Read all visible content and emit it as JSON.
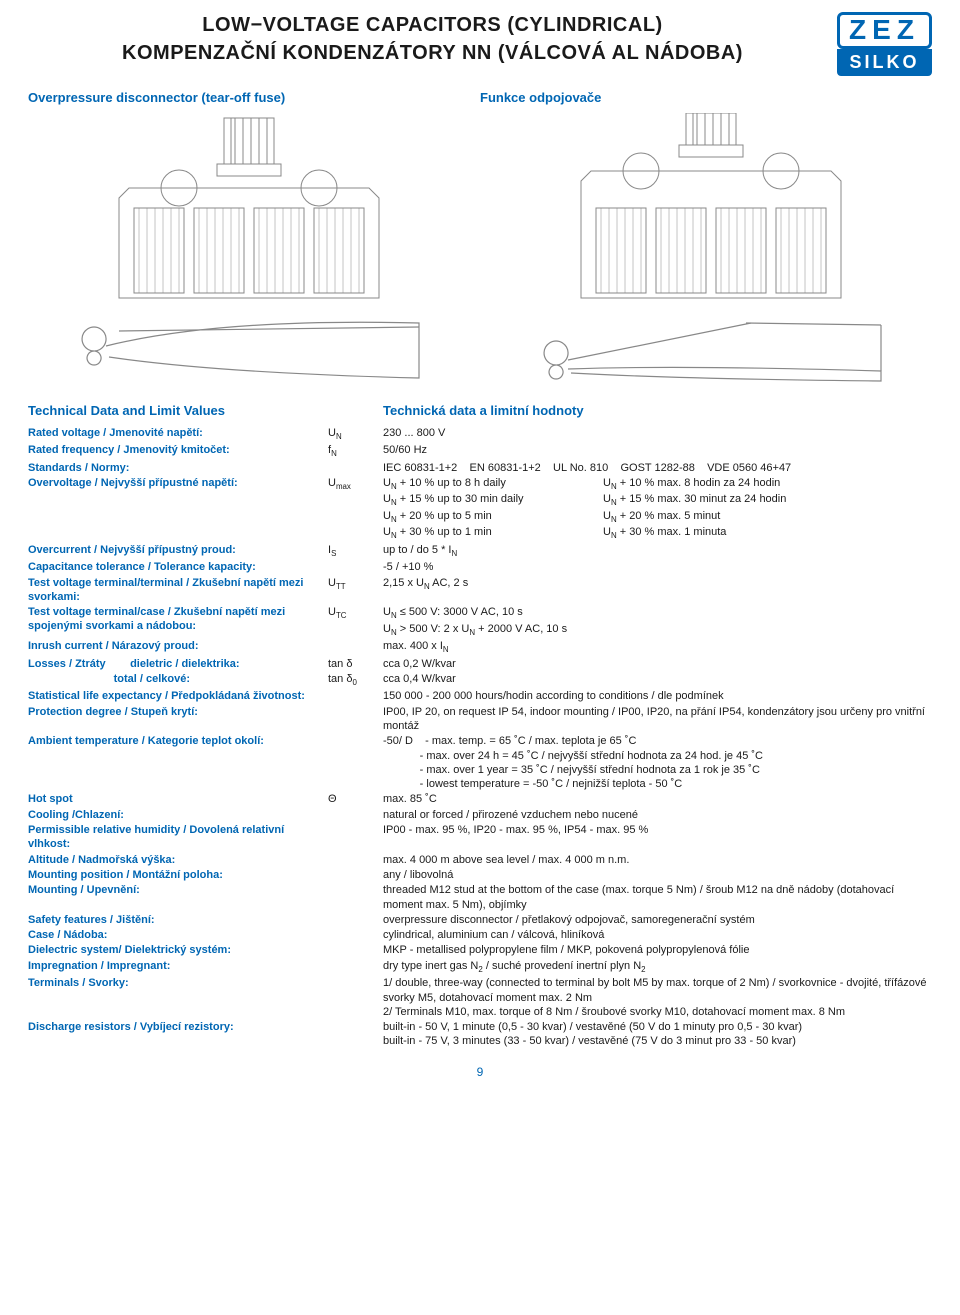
{
  "header": {
    "title1": "LOW−VOLTAGE CAPACITORS (CYLINDRICAL)",
    "title2": "KOMPENZAČNÍ KONDENZÁTORY NN (VÁLCOVÁ AL NÁDOBA)",
    "logo_top": "ZEZ",
    "logo_bottom": "SILKO"
  },
  "subheads": {
    "left": "Overpressure disconnector (tear-off fuse)",
    "right": "Funkce odpojovače"
  },
  "section_heads": {
    "left": "Technical Data and Limit Values",
    "right": "Technická data a limitní hodnoty"
  },
  "specs": [
    {
      "label": "Rated voltage / Jmenovité napětí:",
      "sym": "U<span class='sub'>N</span>",
      "val": "230 ... 800 V"
    },
    {
      "label": "Rated frequency / Jmenovitý kmitočet:",
      "sym": "f<span class='sub'>N</span>",
      "val": "50/60 Hz"
    },
    {
      "label": "Standards / Normy:",
      "sym": "",
      "val": "IEC 60831-1+2&nbsp;&nbsp;&nbsp;&nbsp;EN 60831-1+2&nbsp;&nbsp;&nbsp;&nbsp;UL No. 810&nbsp;&nbsp;&nbsp;&nbsp;GOST 1282-88&nbsp;&nbsp;&nbsp;&nbsp;VDE 0560 46+47"
    },
    {
      "label": "Overvoltage / Nejvyšší přípustné napětí:",
      "sym": "U<span class='sub'>max</span>",
      "val": "<div class='cols2'><span>U<span class='sub'>N</span> + 10 % up to 8 h daily</span><span>U<span class='sub'>N</span> + 10 % max. 8 hodin za 24 hodin</span></div><div class='cols2'><span>U<span class='sub'>N</span> + 15 % up to 30 min daily</span><span>U<span class='sub'>N</span> + 15 % max. 30 minut za 24 hodin</span></div><div class='cols2'><span>U<span class='sub'>N</span> + 20 % up to 5 min</span><span>U<span class='sub'>N</span> + 20 % max. 5 minut</span></div><div class='cols2'><span>U<span class='sub'>N</span> + 30 % up to 1 min</span><span>U<span class='sub'>N</span> + 30 % max. 1 minuta</span></div>"
    },
    {
      "label": "Overcurrent / Nejvyšší přípustný proud:",
      "sym": "I<span class='sub'>S</span>",
      "val": "up to / do 5 * I<span class='sub'>N</span>"
    },
    {
      "label": "Capacitance tolerance / Tolerance kapacity:",
      "sym": "",
      "val": "-5 / +10 %"
    },
    {
      "label": "Test voltage terminal/terminal / Zkušební napětí mezi svorkami:",
      "sym": "U<span class='sub'>TT</span>",
      "val": "2,15 x U<span class='sub'>N</span> AC, 2 s"
    },
    {
      "label": "Test voltage terminal/case / Zkušební napětí mezi spojenými svorkami a nádobou:",
      "sym": "U<span class='sub'>TC</span>",
      "val": "U<span class='sub'>N</span> ≤ 500 V: 3000 V AC, 10 s<br>U<span class='sub'>N</span> > 500 V: 2 x U<span class='sub'>N</span> + 2000 V AC, 10 s"
    },
    {
      "label": "Inrush current / Nárazový proud:",
      "sym": "",
      "val": "max. 400 x I<span class='sub'>N</span>"
    },
    {
      "label": "Losses / Ztráty&nbsp;&nbsp;&nbsp;&nbsp;&nbsp;&nbsp;&nbsp;&nbsp;dieletric / dielektrika:",
      "sym": "tan δ",
      "val": "cca 0,2 W/kvar"
    },
    {
      "label": "&nbsp;&nbsp;&nbsp;&nbsp;&nbsp;&nbsp;&nbsp;&nbsp;&nbsp;&nbsp;&nbsp;&nbsp;&nbsp;&nbsp;&nbsp;&nbsp;&nbsp;&nbsp;&nbsp;&nbsp;&nbsp;&nbsp;&nbsp;&nbsp;&nbsp;&nbsp;&nbsp;&nbsp;total / celkové:",
      "sym": "tan δ<span class='sub'>0</span>",
      "val": "cca 0,4 W/kvar"
    },
    {
      "label": "Statistical life expectancy / Předpokládaná životnost:",
      "sym": "",
      "val": "150 000 - 200 000 hours/hodin according to conditions / dle podmínek"
    },
    {
      "label": "Protection degree / Stupeň krytí:",
      "sym": "",
      "val": "IP00, IP 20, on request IP 54, indoor mounting / IP00, IP20, na přání IP54, kondenzátory jsou určeny pro vnitřní montáž"
    },
    {
      "label": "Ambient temperature / Kategorie teplot okolí:",
      "sym": "",
      "val": "-50/ D&nbsp;&nbsp;&nbsp;&nbsp;- max. temp. = 65 ˚C / max. teplota je 65 ˚C<br>&nbsp;&nbsp;&nbsp;&nbsp;&nbsp;&nbsp;&nbsp;&nbsp;&nbsp;&nbsp;&nbsp;&nbsp;- max. over 24 h = 45 ˚C / nejvyšší střední hodnota za 24 hod. je 45 ˚C<br>&nbsp;&nbsp;&nbsp;&nbsp;&nbsp;&nbsp;&nbsp;&nbsp;&nbsp;&nbsp;&nbsp;&nbsp;- max. over 1 year = 35 ˚C / nejvyšší střední hodnota za 1 rok je 35 ˚C<br>&nbsp;&nbsp;&nbsp;&nbsp;&nbsp;&nbsp;&nbsp;&nbsp;&nbsp;&nbsp;&nbsp;&nbsp;- lowest temperature = -50 ˚C / nejnižší teplota - 50 ˚C"
    },
    {
      "label": "Hot spot",
      "sym": "Θ",
      "val": "max. 85 ˚C"
    },
    {
      "label": "Cooling /Chlazení:",
      "sym": "",
      "val": "natural or forced / přirozené vzduchem nebo nucené"
    },
    {
      "label": "Permissible relative humidity / Dovolená relativní vlhkost:",
      "sym": "",
      "val": "IP00 - max. 95 %, IP20 - max. 95 %, IP54 - max. 95 %"
    },
    {
      "label": "Altitude / Nadmořská výška:",
      "sym": "",
      "val": "max. 4 000 m above sea level / max. 4 000 m n.m."
    },
    {
      "label": "Mounting position / Montážní poloha:",
      "sym": "",
      "val": "any / libovolná"
    },
    {
      "label": "Mounting / Upevnění:",
      "sym": "",
      "val": "threaded M12 stud at the bottom of the case (max. torque 5 Nm) / šroub M12 na dně nádoby (dotahovací moment max. 5 Nm), objímky"
    },
    {
      "label": "Safety features / Jištění:",
      "sym": "",
      "val": "overpressure disconnector / přetlakový odpojovač, samoregenerační systém"
    },
    {
      "label": "Case / Nádoba:",
      "sym": "",
      "val": "cylindrical, aluminium can / válcová, hliníková"
    },
    {
      "label": "Dielectric system/ Dielektrický systém:",
      "sym": "",
      "val": "MKP - metallised polypropylene film / MKP, pokovená polypropylenová fólie"
    },
    {
      "label": "Impregnation / Impregnant:",
      "sym": "",
      "val": "dry type inert gas N<span class='sub'>2</span> / suché provedení inertní plyn N<span class='sub'>2</span>"
    },
    {
      "label": "Terminals / Svorky:",
      "sym": "",
      "val": "1/ double, three-way (connected to terminal by bolt M5 by max. torque of 2 Nm) / svorkovnice - dvojité, třífázové svorky M5, dotahovací moment max. 2 Nm<br>2/ Terminals M10, max. torque of 8 Nm / šroubové svorky M10, dotahovací moment max. 8 Nm"
    },
    {
      "label": "Discharge resistors / Vybíjecí rezistory:",
      "sym": "",
      "val": "built-in - 50 V, 1 minute (0,5 - 30 kvar) / vestavěné (50 V do 1 minuty pro 0,5 - 30 kvar)<br>built-in - 75 V, 3 minutes (33 - 50 kvar) / vestavěné (75 V do 3 minut pro 33 - 50 kvar)"
    }
  ],
  "page_number": "9",
  "colors": {
    "blue": "#0066b3",
    "text": "#1a1a1a",
    "line": "#888"
  }
}
